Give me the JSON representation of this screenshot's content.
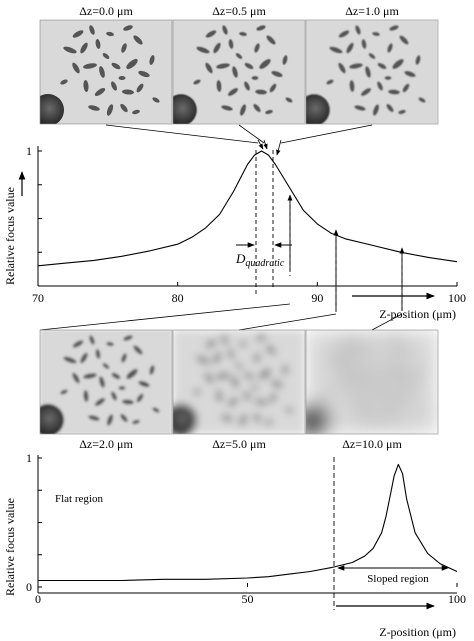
{
  "top_images": [
    {
      "label": "Δz=0.0 μm",
      "blur": 0
    },
    {
      "label": "Δz=0.5 μm",
      "blur": 0.4
    },
    {
      "label": "Δz=1.0 μm",
      "blur": 0.8
    }
  ],
  "bottom_images": [
    {
      "label": "Δz=2.0 μm",
      "blur": 1.2
    },
    {
      "label": "Δz=5.0 μm",
      "blur": 4
    },
    {
      "label": "Δz=10.0 μm",
      "blur": 9
    }
  ],
  "chart_data": [
    {
      "type": "line",
      "xlabel": "Z-position (μm)",
      "ylabel": "Relative focus value",
      "xlim": [
        70,
        100
      ],
      "ylim": [
        0,
        1
      ],
      "x_ticks": [
        70,
        80,
        90,
        100
      ],
      "y_ticks": [
        1
      ],
      "annotation": {
        "text": "D",
        "subscript": "quadratic"
      },
      "x": [
        70,
        72,
        74,
        76,
        78,
        80,
        81,
        82,
        83,
        84,
        85,
        85.5,
        86,
        86.5,
        87,
        88,
        89,
        90,
        91,
        92,
        94,
        96,
        98,
        100
      ],
      "y": [
        0.15,
        0.17,
        0.19,
        0.22,
        0.26,
        0.31,
        0.36,
        0.43,
        0.53,
        0.7,
        0.9,
        0.97,
        1.0,
        0.97,
        0.9,
        0.73,
        0.56,
        0.46,
        0.39,
        0.35,
        0.3,
        0.25,
        0.21,
        0.18
      ]
    },
    {
      "type": "line",
      "xlabel": "Z-position (μm)",
      "ylabel": "Relative focus value",
      "xlim": [
        0,
        100
      ],
      "ylim": [
        0,
        1
      ],
      "x_ticks": [
        0,
        50,
        100
      ],
      "y_ticks": [
        0,
        1
      ],
      "annotations": [
        "Flat region",
        "Sloped region"
      ],
      "x": [
        0,
        10,
        20,
        30,
        40,
        50,
        55,
        60,
        65,
        70,
        75,
        78,
        80,
        82,
        83,
        84,
        85,
        86,
        87,
        88,
        90,
        93,
        96,
        100
      ],
      "y": [
        0.05,
        0.05,
        0.05,
        0.06,
        0.06,
        0.07,
        0.08,
        0.1,
        0.12,
        0.15,
        0.19,
        0.24,
        0.3,
        0.42,
        0.54,
        0.7,
        0.86,
        0.95,
        0.88,
        0.68,
        0.42,
        0.26,
        0.18,
        0.12
      ]
    }
  ]
}
